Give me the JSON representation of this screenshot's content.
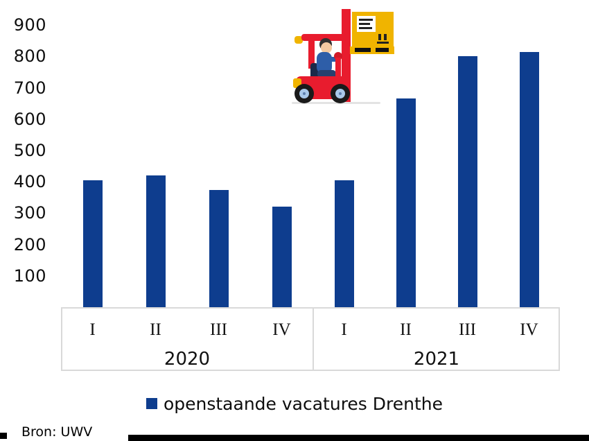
{
  "chart_data": {
    "type": "bar",
    "title": "",
    "xlabel": "",
    "ylabel": "",
    "categories": [
      "2020 I",
      "2020 II",
      "2020 III",
      "2020 IV",
      "2021 I",
      "2021 II",
      "2021 III",
      "2021 IV"
    ],
    "x_groups": [
      {
        "year": "2020",
        "quarters": [
          "I",
          "II",
          "III",
          "IV"
        ]
      },
      {
        "year": "2021",
        "quarters": [
          "I",
          "II",
          "III",
          "IV"
        ]
      }
    ],
    "series": [
      {
        "name": "openstaande vacatures Drenthe",
        "values": [
          405,
          420,
          375,
          320,
          405,
          665,
          800,
          815
        ]
      }
    ],
    "ylim": [
      0,
      950
    ],
    "yticks": [
      100,
      200,
      300,
      400,
      500,
      600,
      700,
      800,
      900
    ],
    "grid": false,
    "legend_position": "bottom",
    "bar_color": "#0e3d8e"
  },
  "legend": {
    "label": "openstaande vacatures Drenthe",
    "swatch_color": "#0e3d8e"
  },
  "source": {
    "label": "Bron: UWV"
  },
  "illustration": {
    "name": "forklift-carrying-crate",
    "colors": {
      "body": "#e81c2e",
      "crate": "#f0b400",
      "driver_shirt": "#2e5ea8",
      "wheel_hub": "#a9c9ea"
    }
  }
}
